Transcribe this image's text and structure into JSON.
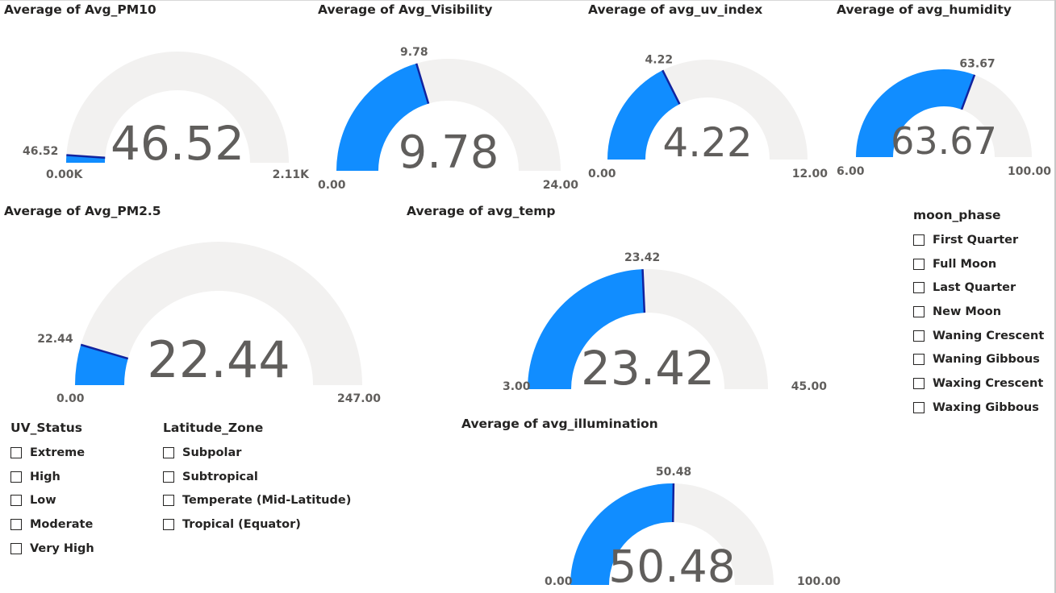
{
  "colors": {
    "fill": "#118dff",
    "track": "#f2f1f0",
    "needle": "#12239e",
    "text": "#605e5c"
  },
  "gauges": [
    {
      "id": "pm10",
      "title": "Average of Avg_PM10",
      "value": 46.52,
      "min": 0,
      "max": 2110,
      "value_label": "46.52",
      "center_label": "46.52",
      "min_label": "0.00K",
      "max_label": "2.11K"
    },
    {
      "id": "visibility",
      "title": "Average of Avg_Visibility",
      "value": 9.78,
      "min": 0,
      "max": 24,
      "value_label": "9.78",
      "center_label": "9.78",
      "min_label": "0.00",
      "max_label": "24.00"
    },
    {
      "id": "uv",
      "title": "Average of avg_uv_index",
      "value": 4.22,
      "min": 0,
      "max": 12,
      "value_label": "4.22",
      "center_label": "4.22",
      "min_label": "0.00",
      "max_label": "12.00"
    },
    {
      "id": "humidity",
      "title": "Average of avg_humidity",
      "value": 63.67,
      "min": 6,
      "max": 100,
      "value_label": "63.67",
      "center_label": "63.67",
      "min_label": "6.00",
      "max_label": "100.00"
    },
    {
      "id": "pm25",
      "title": "Average of Avg_PM2.5",
      "value": 22.44,
      "min": 0,
      "max": 247,
      "value_label": "22.44",
      "center_label": "22.44",
      "min_label": "0.00",
      "max_label": "247.00"
    },
    {
      "id": "temp",
      "title": "Average of avg_temp",
      "value": 23.42,
      "min": 3,
      "max": 45,
      "value_label": "23.42",
      "center_label": "23.42",
      "min_label": "3.00",
      "max_label": "45.00"
    },
    {
      "id": "illumination",
      "title": "Average of avg_illumination",
      "value": 50.48,
      "min": 0,
      "max": 100,
      "value_label": "50.48",
      "center_label": "50.48",
      "min_label": "0.00",
      "max_label": "100.00"
    }
  ],
  "slicers": {
    "moon_phase": {
      "title": "moon_phase",
      "items": [
        "First Quarter",
        "Full Moon",
        "Last Quarter",
        "New Moon",
        "Waning Crescent",
        "Waning Gibbous",
        "Waxing Crescent",
        "Waxing Gibbous"
      ]
    },
    "uv_status": {
      "title": "UV_Status",
      "items": [
        "Extreme",
        "High",
        "Low",
        "Moderate",
        "Very High"
      ]
    },
    "latitude_zone": {
      "title": "Latitude_Zone",
      "items": [
        "Subpolar",
        "Subtropical",
        "Temperate (Mid-Latitude)",
        "Tropical (Equator)"
      ]
    }
  }
}
